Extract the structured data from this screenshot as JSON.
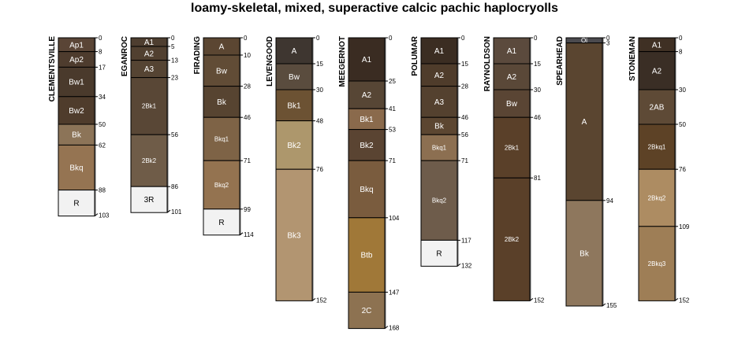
{
  "chart_data": {
    "type": "soil-profile",
    "title": "loamy-skeletal, mixed, superactive calcic pachic haplocryolls",
    "profiles": [
      {
        "name": "CLEMENTSVILLE",
        "bottom_label": "103",
        "horizons": [
          {
            "name": "Ap1",
            "top": 0,
            "bottom": 8,
            "color": "#5a4536"
          },
          {
            "name": "Ap2",
            "top": 8,
            "bottom": 17,
            "color": "#4e3c2e"
          },
          {
            "name": "Bw1",
            "top": 17,
            "bottom": 34,
            "color": "#4a3a2c"
          },
          {
            "name": "Bw2",
            "top": 34,
            "bottom": 50,
            "color": "#4f3c2c"
          },
          {
            "name": "Bk",
            "top": 50,
            "bottom": 62,
            "color": "#8c7458"
          },
          {
            "name": "Bkq",
            "top": 62,
            "bottom": 88,
            "color": "#957452"
          },
          {
            "name": "R",
            "top": 88,
            "bottom": 103,
            "color": "#f2f2f2"
          }
        ],
        "depth_labels": [
          "0",
          "8",
          "17",
          "34",
          "50",
          "62",
          "88",
          "103"
        ]
      },
      {
        "name": "EGANROC",
        "bottom_label": "101",
        "horizons": [
          {
            "name": "A1",
            "top": 0,
            "bottom": 5,
            "color": "#4e3e30"
          },
          {
            "name": "A2",
            "top": 5,
            "bottom": 13,
            "color": "#514030"
          },
          {
            "name": "A3",
            "top": 13,
            "bottom": 23,
            "color": "#554433"
          },
          {
            "name": "2Bk1",
            "top": 23,
            "bottom": 56,
            "color": "#594736"
          },
          {
            "name": "2Bk2",
            "top": 56,
            "bottom": 86,
            "color": "#6f5c48"
          },
          {
            "name": "3R",
            "top": 86,
            "bottom": 101,
            "color": "#f2f2f2"
          }
        ],
        "depth_labels": [
          "0",
          "5",
          "13",
          "23",
          "56",
          "86",
          "101"
        ]
      },
      {
        "name": "FIRADING",
        "bottom_label": "114",
        "horizons": [
          {
            "name": "A",
            "top": 0,
            "bottom": 10,
            "color": "#5b4632"
          },
          {
            "name": "Bw",
            "top": 10,
            "bottom": 28,
            "color": "#614c36"
          },
          {
            "name": "Bk",
            "top": 28,
            "bottom": 46,
            "color": "#574431"
          },
          {
            "name": "Bkq1",
            "top": 46,
            "bottom": 71,
            "color": "#7e6346"
          },
          {
            "name": "Bkq2",
            "top": 71,
            "bottom": 99,
            "color": "#947350"
          },
          {
            "name": "R",
            "top": 99,
            "bottom": 114,
            "color": "#f2f2f2"
          }
        ],
        "depth_labels": [
          "0",
          "10",
          "28",
          "46",
          "71",
          "99",
          "114"
        ]
      },
      {
        "name": "LEVENGOOD",
        "bottom_label": "152",
        "horizons": [
          {
            "name": "A",
            "top": 0,
            "bottom": 15,
            "color": "#3e3630"
          },
          {
            "name": "Bw",
            "top": 15,
            "bottom": 30,
            "color": "#5a4c3e"
          },
          {
            "name": "Bk1",
            "top": 30,
            "bottom": 48,
            "color": "#6c5233"
          },
          {
            "name": "Bk2",
            "top": 48,
            "bottom": 76,
            "color": "#ad976c"
          },
          {
            "name": "Bk3",
            "top": 76,
            "bottom": 152,
            "color": "#b29571"
          }
        ],
        "depth_labels": [
          "0",
          "15",
          "30",
          "48",
          "76",
          "152"
        ]
      },
      {
        "name": "MEEGERNOT",
        "bottom_label": "168",
        "horizons": [
          {
            "name": "A1",
            "top": 0,
            "bottom": 25,
            "color": "#3a2c22"
          },
          {
            "name": "A2",
            "top": 25,
            "bottom": 41,
            "color": "#574635"
          },
          {
            "name": "Bk1",
            "top": 41,
            "bottom": 53,
            "color": "#8a6a4c"
          },
          {
            "name": "Bk2",
            "top": 53,
            "bottom": 71,
            "color": "#5a4432"
          },
          {
            "name": "Bkq",
            "top": 71,
            "bottom": 104,
            "color": "#7a5c3e"
          },
          {
            "name": "Btb",
            "top": 104,
            "bottom": 147,
            "color": "#a07838"
          },
          {
            "name": "2C",
            "top": 147,
            "bottom": 168,
            "color": "#8d7251"
          }
        ],
        "depth_labels": [
          "0",
          "25",
          "41",
          "53",
          "71",
          "104",
          "147",
          "168"
        ]
      },
      {
        "name": "POLUMAR",
        "bottom_label": "132",
        "horizons": [
          {
            "name": "A1",
            "top": 0,
            "bottom": 15,
            "color": "#3b2d22"
          },
          {
            "name": "A2",
            "top": 15,
            "bottom": 28,
            "color": "#4f3c2b"
          },
          {
            "name": "A3",
            "top": 28,
            "bottom": 46,
            "color": "#54412f"
          },
          {
            "name": "Bk",
            "top": 46,
            "bottom": 56,
            "color": "#5c4631"
          },
          {
            "name": "Bkq1",
            "top": 56,
            "bottom": 71,
            "color": "#8c6f51"
          },
          {
            "name": "Bkq2",
            "top": 71,
            "bottom": 117,
            "color": "#6e5c4b"
          },
          {
            "name": "R",
            "top": 117,
            "bottom": 132,
            "color": "#f2f2f2"
          }
        ],
        "depth_labels": [
          "0",
          "15",
          "28",
          "46",
          "56",
          "71",
          "117",
          "132"
        ]
      },
      {
        "name": "RAYNOLDSON",
        "bottom_label": "152",
        "horizons": [
          {
            "name": "A1",
            "top": 0,
            "bottom": 15,
            "color": "#5b4a3d"
          },
          {
            "name": "A2",
            "top": 15,
            "bottom": 30,
            "color": "#5a4838"
          },
          {
            "name": "Bw",
            "top": 30,
            "bottom": 46,
            "color": "#5a4534"
          },
          {
            "name": "2Bk1",
            "top": 46,
            "bottom": 81,
            "color": "#5a4029"
          },
          {
            "name": "2Bk2",
            "top": 81,
            "bottom": 152,
            "color": "#5a4029"
          }
        ],
        "depth_labels": [
          "0",
          "15",
          "30",
          "46",
          "81",
          "152"
        ]
      },
      {
        "name": "SPEARHEAD",
        "bottom_label": "155",
        "horizons": [
          {
            "name": "Oi",
            "top": 0,
            "bottom": 3,
            "color": "#4b4a4e"
          },
          {
            "name": "A",
            "top": 3,
            "bottom": 94,
            "color": "#5a4530"
          },
          {
            "name": "Bk",
            "top": 94,
            "bottom": 155,
            "color": "#8e775d"
          }
        ],
        "depth_labels": [
          "0",
          "3",
          "94",
          "155"
        ]
      },
      {
        "name": "STONEMAN",
        "bottom_label": "152",
        "horizons": [
          {
            "name": "A1",
            "top": 0,
            "bottom": 8,
            "color": "#3f3024"
          },
          {
            "name": "A2",
            "top": 8,
            "bottom": 30,
            "color": "#3a2e25"
          },
          {
            "name": "2AB",
            "top": 30,
            "bottom": 50,
            "color": "#5e4a36"
          },
          {
            "name": "2Bkq1",
            "top": 50,
            "bottom": 76,
            "color": "#5d4226"
          },
          {
            "name": "2Bkq2",
            "top": 76,
            "bottom": 109,
            "color": "#ad8c62"
          },
          {
            "name": "2Bkq3",
            "top": 109,
            "bottom": 152,
            "color": "#9e7e56"
          }
        ],
        "depth_labels": [
          "0",
          "8",
          "30",
          "50",
          "76",
          "109",
          "152"
        ]
      }
    ]
  }
}
